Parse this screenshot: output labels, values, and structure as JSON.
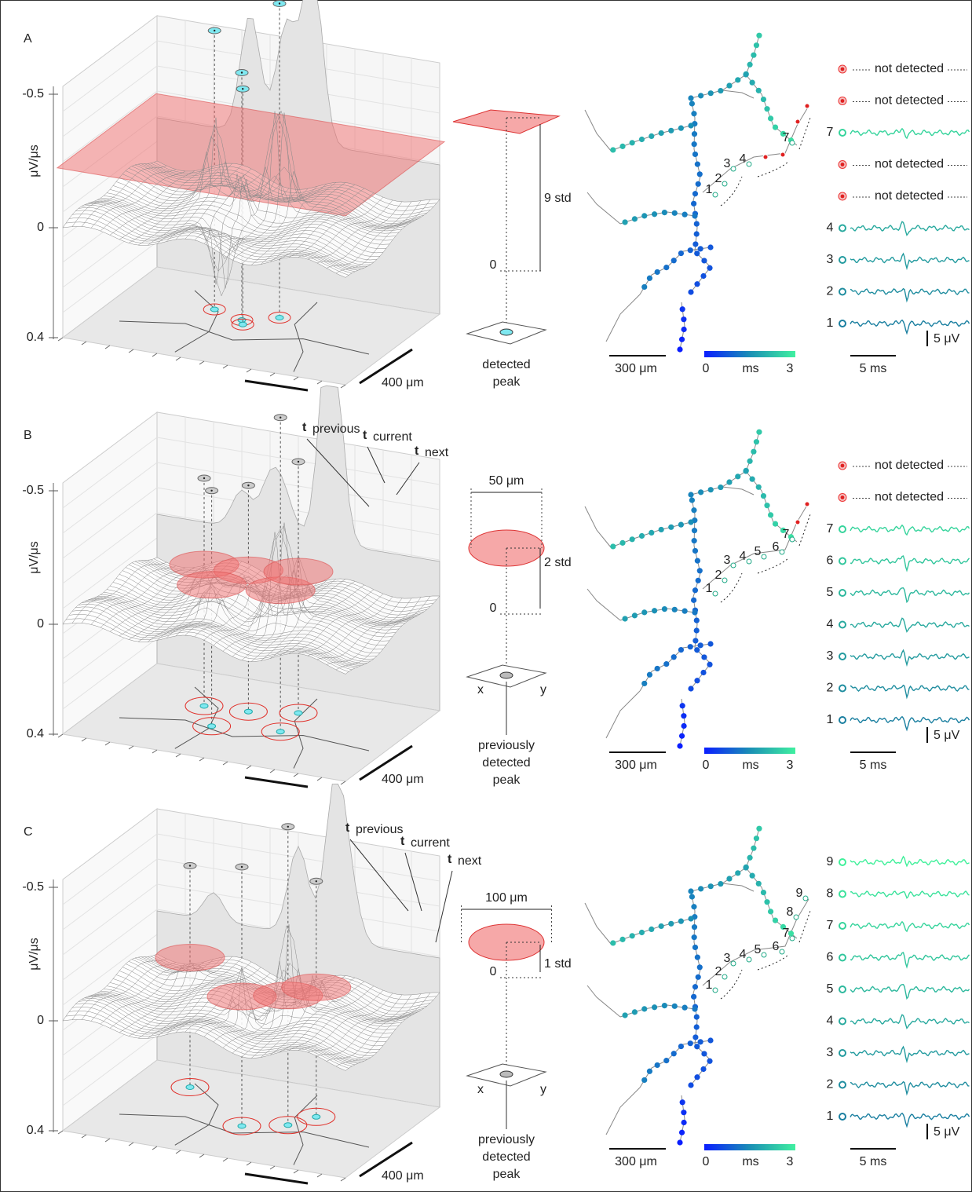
{
  "panels": [
    {
      "label": "A",
      "surface": {
        "yticks": [
          "-0.5",
          "0",
          "0.4"
        ],
        "ylabel": "μV/μs",
        "scale": "400 μm"
      },
      "threshold": {
        "level": "9 std",
        "zero": "0",
        "caption": [
          "detected",
          "peak"
        ]
      },
      "map": {
        "point_labels": [
          "1",
          "2",
          "3",
          "4",
          "7"
        ],
        "scale": "300 μm",
        "colorbar": [
          "0",
          "ms",
          "3"
        ]
      },
      "traces": {
        "rows": [
          {
            "note": "not detected"
          },
          {
            "note": "not detected"
          },
          {
            "number": "7"
          },
          {
            "note": "not detected"
          },
          {
            "note": "not detected"
          },
          {
            "number": "4"
          },
          {
            "number": "3"
          },
          {
            "number": "2"
          },
          {
            "number": "1"
          }
        ],
        "time_scale": "5 ms",
        "amp_scale": "5 μV"
      }
    },
    {
      "label": "B",
      "surface": {
        "yticks": [
          "-0.5",
          "0",
          "0.4"
        ],
        "ylabel": "μV/μs",
        "scale": "400 μm",
        "times": [
          {
            "main": "t",
            "sub": "previous"
          },
          {
            "main": "t",
            "sub": "current"
          },
          {
            "main": "t",
            "sub": "next"
          }
        ]
      },
      "threshold": {
        "width": "50 μm",
        "level": "2 std",
        "zero": "0",
        "axes": [
          "x",
          "y"
        ],
        "caption": [
          "previously",
          "detected",
          "peak"
        ]
      },
      "map": {
        "point_labels": [
          "1",
          "2",
          "3",
          "4",
          "5",
          "6",
          "7"
        ],
        "scale": "300 μm",
        "colorbar": [
          "0",
          "ms",
          "3"
        ]
      },
      "traces": {
        "rows": [
          {
            "note": "not detected"
          },
          {
            "note": "not detected"
          },
          {
            "number": "7"
          },
          {
            "number": "6"
          },
          {
            "number": "5"
          },
          {
            "number": "4"
          },
          {
            "number": "3"
          },
          {
            "number": "2"
          },
          {
            "number": "1"
          }
        ],
        "time_scale": "5 ms",
        "amp_scale": "5 μV"
      }
    },
    {
      "label": "C",
      "surface": {
        "yticks": [
          "-0.5",
          "0",
          "0.4"
        ],
        "ylabel": "μV/μs",
        "scale": "400 μm",
        "times": [
          {
            "main": "t",
            "sub": "previous"
          },
          {
            "main": "t",
            "sub": "current"
          },
          {
            "main": "t",
            "sub": "next"
          }
        ]
      },
      "threshold": {
        "width": "100 μm",
        "level": "1 std",
        "zero": "0",
        "axes": [
          "x",
          "y"
        ],
        "caption": [
          "previously",
          "detected",
          "peak"
        ]
      },
      "map": {
        "point_labels": [
          "1",
          "2",
          "3",
          "4",
          "5",
          "6",
          "7",
          "8",
          "9"
        ],
        "scale": "300 μm",
        "colorbar": [
          "0",
          "ms",
          "3"
        ]
      },
      "traces": {
        "rows": [
          {
            "number": "9"
          },
          {
            "number": "8"
          },
          {
            "number": "7"
          },
          {
            "number": "6"
          },
          {
            "number": "5"
          },
          {
            "number": "4"
          },
          {
            "number": "3"
          },
          {
            "number": "2"
          },
          {
            "number": "1"
          }
        ],
        "time_scale": "5 ms",
        "amp_scale": "5 μV"
      }
    }
  ]
}
